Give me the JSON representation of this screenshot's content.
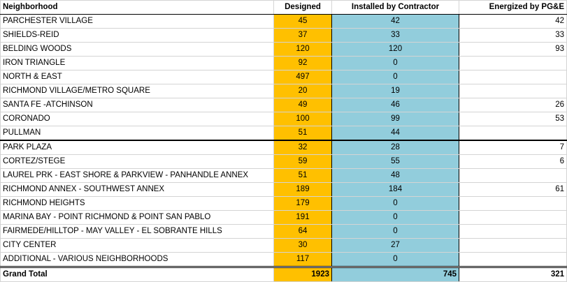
{
  "table": {
    "header": [
      "Neighborhood",
      "Designed",
      "Installed by Contractor",
      "Energized by PG&E"
    ],
    "rows": [
      [
        "PARCHESTER VILLAGE",
        45,
        42,
        42
      ],
      [
        "SHIELDS-REID",
        37,
        33,
        33
      ],
      [
        "BELDING WOODS",
        120,
        120,
        93
      ],
      [
        "IRON TRIANGLE",
        92,
        0,
        null
      ],
      [
        "NORTH & EAST",
        497,
        0,
        null
      ],
      [
        "RICHMOND VILLAGE/METRO SQUARE",
        20,
        19,
        null
      ],
      [
        "SANTA FE -ATCHINSON",
        49,
        46,
        26
      ],
      [
        "CORONADO",
        100,
        99,
        53
      ],
      [
        "PULLMAN",
        51,
        44,
        null
      ],
      [
        "PARK PLAZA",
        32,
        28,
        7
      ],
      [
        "CORTEZ/STEGE",
        59,
        55,
        6
      ],
      [
        "LAUREL PRK - EAST SHORE & PARKVIEW - PANHANDLE ANNEX",
        51,
        48,
        null
      ],
      [
        "RICHMOND ANNEX - SOUTHWEST ANNEX",
        189,
        184,
        61
      ],
      [
        "RICHMOND HEIGHTS",
        179,
        0,
        null
      ],
      [
        "MARINA BAY - POINT RICHMOND & POINT SAN PABLO",
        191,
        0,
        null
      ],
      [
        "FAIRMEDE/HILLTOP - MAY VALLEY - EL SOBRANTE HILLS",
        64,
        0,
        null
      ],
      [
        "CITY CENTER",
        30,
        27,
        null
      ],
      [
        "ADDITIONAL - VARIOUS NEIGHBORHOODS",
        117,
        0,
        null
      ]
    ],
    "total": [
      "Grand Total",
      1923,
      745,
      321
    ]
  }
}
